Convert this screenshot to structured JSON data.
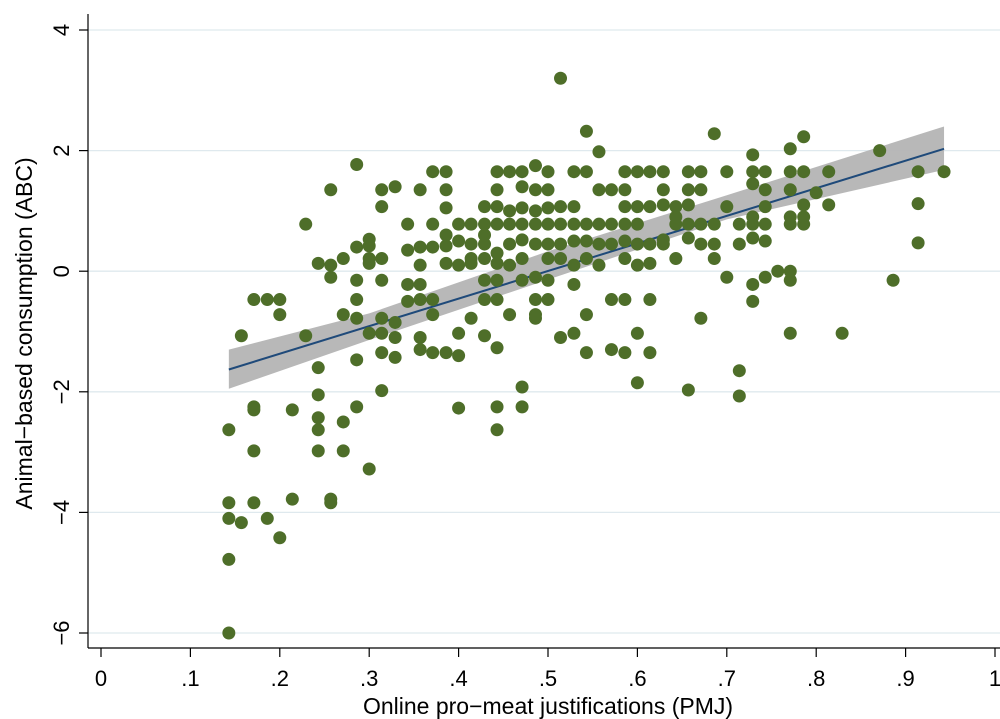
{
  "chart_data": {
    "type": "scatter",
    "title": "",
    "xlabel": "Online pro−meat justifications (PMJ)",
    "ylabel": "Animal−based consumption (ABC)",
    "xlim": [
      0,
      1
    ],
    "ylim": [
      -6,
      4
    ],
    "xticks": [
      {
        "value": 0,
        "label": "0"
      },
      {
        "value": 0.1,
        "label": ".1"
      },
      {
        "value": 0.2,
        "label": ".2"
      },
      {
        "value": 0.3,
        "label": ".3"
      },
      {
        "value": 0.4,
        "label": ".4"
      },
      {
        "value": 0.5,
        "label": ".5"
      },
      {
        "value": 0.6,
        "label": ".6"
      },
      {
        "value": 0.7,
        "label": ".7"
      },
      {
        "value": 0.8,
        "label": ".8"
      },
      {
        "value": 0.9,
        "label": ".9"
      },
      {
        "value": 1,
        "label": "1"
      }
    ],
    "yticks": [
      {
        "value": -6,
        "label": "−6"
      },
      {
        "value": -4,
        "label": "−4"
      },
      {
        "value": -2,
        "label": "−2"
      },
      {
        "value": 0,
        "label": "0"
      },
      {
        "value": 2,
        "label": "2"
      },
      {
        "value": 4,
        "label": "4"
      }
    ],
    "grid": "horizontal",
    "colors": {
      "points": "#4e6e29",
      "fit_line": "#1f4a7a",
      "ci_band": "#b4b4b4",
      "grid": "#dfe9ee"
    },
    "fit_line": {
      "x": [
        0.143,
        0.943
      ],
      "y": [
        -1.63,
        2.03
      ]
    },
    "ci_band": {
      "x": [
        0.143,
        0.3,
        0.5,
        0.7,
        0.943
      ],
      "lower": [
        -1.95,
        -1.14,
        -0.14,
        0.86,
        1.68
      ],
      "upper": [
        -1.3,
        -0.7,
        0.33,
        1.26,
        2.4
      ]
    },
    "points": [
      [
        0.143,
        -6.0
      ],
      [
        0.143,
        -4.78
      ],
      [
        0.143,
        -4.1
      ],
      [
        0.143,
        -3.84
      ],
      [
        0.143,
        -2.63
      ],
      [
        0.157,
        -4.17
      ],
      [
        0.157,
        -1.07
      ],
      [
        0.171,
        -3.84
      ],
      [
        0.171,
        -2.98
      ],
      [
        0.171,
        -2.3
      ],
      [
        0.171,
        -2.25
      ],
      [
        0.171,
        -0.47
      ],
      [
        0.186,
        -4.1
      ],
      [
        0.186,
        -0.47
      ],
      [
        0.2,
        -4.42
      ],
      [
        0.2,
        -0.72
      ],
      [
        0.2,
        -0.47
      ],
      [
        0.214,
        -3.78
      ],
      [
        0.214,
        -2.3
      ],
      [
        0.229,
        -1.07
      ],
      [
        0.229,
        0.78
      ],
      [
        0.243,
        -2.98
      ],
      [
        0.243,
        -2.63
      ],
      [
        0.243,
        -2.43
      ],
      [
        0.243,
        -2.05
      ],
      [
        0.243,
        -1.6
      ],
      [
        0.243,
        0.13
      ],
      [
        0.257,
        -3.84
      ],
      [
        0.257,
        -3.78
      ],
      [
        0.257,
        -0.1
      ],
      [
        0.257,
        0.1
      ],
      [
        0.257,
        1.35
      ],
      [
        0.271,
        -2.98
      ],
      [
        0.271,
        -2.5
      ],
      [
        0.271,
        -0.72
      ],
      [
        0.271,
        0.21
      ],
      [
        0.286,
        -2.25
      ],
      [
        0.286,
        -1.47
      ],
      [
        0.286,
        -0.78
      ],
      [
        0.286,
        -0.47
      ],
      [
        0.286,
        -0.15
      ],
      [
        0.286,
        0.4
      ],
      [
        0.286,
        1.77
      ],
      [
        0.3,
        -3.28
      ],
      [
        0.3,
        -1.03
      ],
      [
        0.3,
        0.13
      ],
      [
        0.3,
        0.21
      ],
      [
        0.3,
        0.42
      ],
      [
        0.3,
        0.53
      ],
      [
        0.314,
        -1.98
      ],
      [
        0.314,
        -1.35
      ],
      [
        0.314,
        -1.03
      ],
      [
        0.314,
        -0.78
      ],
      [
        0.314,
        -0.15
      ],
      [
        0.314,
        0.21
      ],
      [
        0.314,
        1.07
      ],
      [
        0.314,
        1.35
      ],
      [
        0.329,
        -1.43
      ],
      [
        0.329,
        -1.1
      ],
      [
        0.329,
        -0.85
      ],
      [
        0.329,
        1.4
      ],
      [
        0.343,
        -0.5
      ],
      [
        0.343,
        -0.22
      ],
      [
        0.343,
        0.35
      ],
      [
        0.343,
        0.78
      ],
      [
        0.357,
        -1.3
      ],
      [
        0.357,
        -1.1
      ],
      [
        0.357,
        -0.47
      ],
      [
        0.357,
        -0.22
      ],
      [
        0.357,
        0.1
      ],
      [
        0.357,
        0.4
      ],
      [
        0.357,
        1.35
      ],
      [
        0.371,
        -1.35
      ],
      [
        0.371,
        -0.72
      ],
      [
        0.371,
        -0.47
      ],
      [
        0.371,
        0.4
      ],
      [
        0.371,
        0.78
      ],
      [
        0.371,
        1.65
      ],
      [
        0.386,
        -1.35
      ],
      [
        0.386,
        0.13
      ],
      [
        0.386,
        0.42
      ],
      [
        0.386,
        0.6
      ],
      [
        0.386,
        1.05
      ],
      [
        0.386,
        1.35
      ],
      [
        0.386,
        1.65
      ],
      [
        0.4,
        -2.27
      ],
      [
        0.4,
        -1.4
      ],
      [
        0.4,
        -1.03
      ],
      [
        0.4,
        0.1
      ],
      [
        0.4,
        0.5
      ],
      [
        0.4,
        0.78
      ],
      [
        0.414,
        -0.78
      ],
      [
        0.414,
        0.13
      ],
      [
        0.414,
        0.21
      ],
      [
        0.414,
        0.45
      ],
      [
        0.414,
        0.78
      ],
      [
        0.429,
        -1.07
      ],
      [
        0.429,
        -0.47
      ],
      [
        0.429,
        -0.15
      ],
      [
        0.429,
        0.21
      ],
      [
        0.429,
        0.45
      ],
      [
        0.429,
        0.6
      ],
      [
        0.429,
        0.78
      ],
      [
        0.429,
        1.07
      ],
      [
        0.443,
        -2.63
      ],
      [
        0.443,
        -2.25
      ],
      [
        0.443,
        -1.27
      ],
      [
        0.443,
        -0.47
      ],
      [
        0.443,
        -0.15
      ],
      [
        0.443,
        0.13
      ],
      [
        0.443,
        0.3
      ],
      [
        0.443,
        0.78
      ],
      [
        0.443,
        1.07
      ],
      [
        0.443,
        1.35
      ],
      [
        0.443,
        1.65
      ],
      [
        0.457,
        -0.72
      ],
      [
        0.457,
        0.1
      ],
      [
        0.457,
        0.45
      ],
      [
        0.457,
        0.78
      ],
      [
        0.457,
        1.0
      ],
      [
        0.457,
        1.65
      ],
      [
        0.471,
        -2.25
      ],
      [
        0.471,
        -1.92
      ],
      [
        0.471,
        -0.15
      ],
      [
        0.471,
        0.21
      ],
      [
        0.471,
        0.52
      ],
      [
        0.471,
        0.78
      ],
      [
        0.471,
        1.05
      ],
      [
        0.471,
        1.4
      ],
      [
        0.471,
        1.65
      ],
      [
        0.486,
        -0.78
      ],
      [
        0.486,
        -0.72
      ],
      [
        0.486,
        -0.47
      ],
      [
        0.486,
        -0.1
      ],
      [
        0.486,
        0.45
      ],
      [
        0.486,
        0.78
      ],
      [
        0.486,
        1.0
      ],
      [
        0.486,
        1.35
      ],
      [
        0.486,
        1.75
      ],
      [
        0.5,
        -0.47
      ],
      [
        0.5,
        -0.15
      ],
      [
        0.5,
        0.21
      ],
      [
        0.5,
        0.45
      ],
      [
        0.5,
        0.78
      ],
      [
        0.5,
        1.05
      ],
      [
        0.5,
        1.35
      ],
      [
        0.5,
        1.65
      ],
      [
        0.514,
        -1.1
      ],
      [
        0.514,
        0.21
      ],
      [
        0.514,
        0.45
      ],
      [
        0.514,
        0.78
      ],
      [
        0.514,
        1.07
      ],
      [
        0.514,
        3.2
      ],
      [
        0.529,
        -1.03
      ],
      [
        0.529,
        -0.22
      ],
      [
        0.529,
        0.1
      ],
      [
        0.529,
        0.5
      ],
      [
        0.529,
        0.78
      ],
      [
        0.529,
        1.07
      ],
      [
        0.529,
        1.65
      ],
      [
        0.543,
        -1.35
      ],
      [
        0.543,
        -0.72
      ],
      [
        0.543,
        0.21
      ],
      [
        0.543,
        0.5
      ],
      [
        0.543,
        0.78
      ],
      [
        0.543,
        1.65
      ],
      [
        0.543,
        2.32
      ],
      [
        0.557,
        0.1
      ],
      [
        0.557,
        0.45
      ],
      [
        0.557,
        0.78
      ],
      [
        0.557,
        1.35
      ],
      [
        0.557,
        1.98
      ],
      [
        0.571,
        -1.3
      ],
      [
        0.571,
        -0.47
      ],
      [
        0.571,
        0.45
      ],
      [
        0.571,
        0.78
      ],
      [
        0.571,
        1.35
      ],
      [
        0.586,
        -1.35
      ],
      [
        0.586,
        -0.47
      ],
      [
        0.586,
        0.21
      ],
      [
        0.586,
        0.5
      ],
      [
        0.586,
        0.78
      ],
      [
        0.586,
        1.07
      ],
      [
        0.586,
        1.35
      ],
      [
        0.586,
        1.65
      ],
      [
        0.6,
        -1.85
      ],
      [
        0.6,
        -1.03
      ],
      [
        0.6,
        0.1
      ],
      [
        0.6,
        0.45
      ],
      [
        0.6,
        0.78
      ],
      [
        0.6,
        1.07
      ],
      [
        0.6,
        1.65
      ],
      [
        0.614,
        -1.35
      ],
      [
        0.614,
        -0.47
      ],
      [
        0.614,
        0.13
      ],
      [
        0.614,
        0.45
      ],
      [
        0.614,
        1.07
      ],
      [
        0.614,
        1.65
      ],
      [
        0.629,
        0.45
      ],
      [
        0.629,
        0.52
      ],
      [
        0.629,
        1.1
      ],
      [
        0.629,
        1.35
      ],
      [
        0.629,
        1.65
      ],
      [
        0.643,
        0.21
      ],
      [
        0.643,
        0.78
      ],
      [
        0.643,
        0.9
      ],
      [
        0.643,
        1.07
      ],
      [
        0.657,
        -1.97
      ],
      [
        0.657,
        0.55
      ],
      [
        0.657,
        0.78
      ],
      [
        0.657,
        1.1
      ],
      [
        0.657,
        1.35
      ],
      [
        0.657,
        1.65
      ],
      [
        0.671,
        -0.78
      ],
      [
        0.671,
        0.45
      ],
      [
        0.671,
        0.78
      ],
      [
        0.671,
        1.35
      ],
      [
        0.671,
        1.65
      ],
      [
        0.686,
        0.21
      ],
      [
        0.686,
        0.45
      ],
      [
        0.686,
        0.78
      ],
      [
        0.686,
        2.28
      ],
      [
        0.7,
        -0.1
      ],
      [
        0.7,
        1.07
      ],
      [
        0.7,
        1.65
      ],
      [
        0.714,
        -2.07
      ],
      [
        0.714,
        -1.65
      ],
      [
        0.714,
        0.45
      ],
      [
        0.714,
        0.78
      ],
      [
        0.729,
        -0.5
      ],
      [
        0.729,
        -0.22
      ],
      [
        0.729,
        0.55
      ],
      [
        0.729,
        0.78
      ],
      [
        0.729,
        0.9
      ],
      [
        0.729,
        1.45
      ],
      [
        0.729,
        1.65
      ],
      [
        0.729,
        1.93
      ],
      [
        0.743,
        -0.1
      ],
      [
        0.743,
        0.5
      ],
      [
        0.743,
        0.78
      ],
      [
        0.743,
        1.07
      ],
      [
        0.743,
        1.35
      ],
      [
        0.743,
        1.65
      ],
      [
        0.757,
        0.0
      ],
      [
        0.771,
        -1.03
      ],
      [
        0.771,
        -0.15
      ],
      [
        0.771,
        0.0
      ],
      [
        0.771,
        0.78
      ],
      [
        0.771,
        0.9
      ],
      [
        0.771,
        1.35
      ],
      [
        0.771,
        1.65
      ],
      [
        0.771,
        2.03
      ],
      [
        0.786,
        0.78
      ],
      [
        0.786,
        0.9
      ],
      [
        0.786,
        1.1
      ],
      [
        0.786,
        1.65
      ],
      [
        0.786,
        2.23
      ],
      [
        0.8,
        1.3
      ],
      [
        0.814,
        1.1
      ],
      [
        0.814,
        1.65
      ],
      [
        0.829,
        -1.03
      ],
      [
        0.871,
        2.0
      ],
      [
        0.886,
        -0.15
      ],
      [
        0.914,
        0.47
      ],
      [
        0.914,
        1.12
      ],
      [
        0.914,
        1.65
      ],
      [
        0.943,
        1.65
      ]
    ]
  }
}
